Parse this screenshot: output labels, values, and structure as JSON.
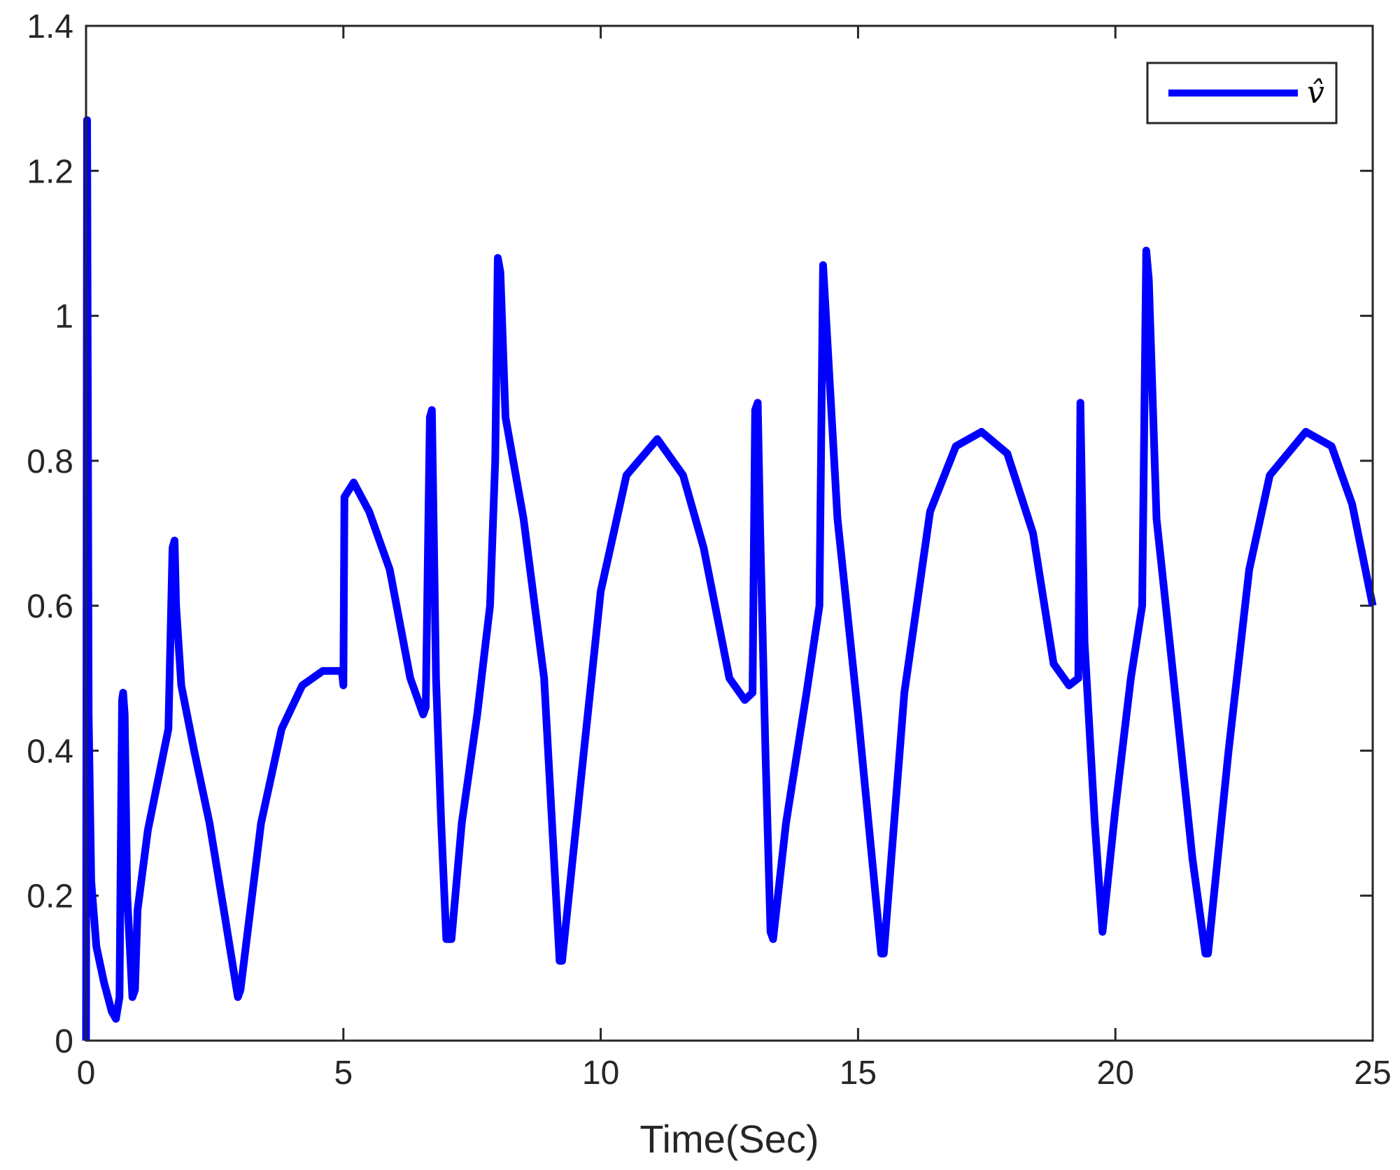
{
  "chart_data": {
    "type": "line",
    "title": "",
    "xlabel": "Time(Sec)",
    "ylabel": "",
    "xlim": [
      0,
      25
    ],
    "ylim": [
      0,
      1.4
    ],
    "xticks": [
      "0",
      "5",
      "10",
      "15",
      "20",
      "25"
    ],
    "yticks": [
      "0",
      "0.2",
      "0.4",
      "0.6",
      "0.8",
      "1",
      "1.2",
      "1.4"
    ],
    "grid": false,
    "legend": {
      "position": "top-right",
      "entries": [
        "v̂"
      ]
    },
    "colors": {
      "series": "#0000ff",
      "axes": "#262626"
    },
    "series": [
      {
        "name": "v̂",
        "x": [
          0,
          0.02,
          0.05,
          0.1,
          0.2,
          0.35,
          0.5,
          0.58,
          0.65,
          0.7,
          0.72,
          0.75,
          0.8,
          0.9,
          0.95,
          1.0,
          1.2,
          1.4,
          1.6,
          1.68,
          1.72,
          1.75,
          1.85,
          2.1,
          2.4,
          2.7,
          2.95,
          3.0,
          3.4,
          3.8,
          4.2,
          4.6,
          4.97,
          5.0,
          5.02,
          5.2,
          5.5,
          5.9,
          6.3,
          6.55,
          6.6,
          6.68,
          6.72,
          6.8,
          6.9,
          7.0,
          7.1,
          7.3,
          7.6,
          7.85,
          7.95,
          8.0,
          8.05,
          8.15,
          8.5,
          8.9,
          9.2,
          9.25,
          9.6,
          10.0,
          10.5,
          11.1,
          11.6,
          12.0,
          12.5,
          12.8,
          12.95,
          13.0,
          13.05,
          13.1,
          13.2,
          13.3,
          13.35,
          13.6,
          14.0,
          14.25,
          14.32,
          14.4,
          14.6,
          15.0,
          15.45,
          15.5,
          15.9,
          16.4,
          16.9,
          17.4,
          17.9,
          18.4,
          18.8,
          19.1,
          19.28,
          19.32,
          19.4,
          19.6,
          19.75,
          20.0,
          20.3,
          20.52,
          20.6,
          20.65,
          20.8,
          21.1,
          21.5,
          21.75,
          21.8,
          22.2,
          22.6,
          23.0,
          23.7,
          24.2,
          24.6,
          25.0
        ],
        "values": [
          0,
          1.27,
          0.45,
          0.22,
          0.13,
          0.08,
          0.04,
          0.03,
          0.06,
          0.47,
          0.48,
          0.45,
          0.2,
          0.06,
          0.07,
          0.18,
          0.29,
          0.36,
          0.43,
          0.68,
          0.69,
          0.6,
          0.49,
          0.4,
          0.3,
          0.17,
          0.06,
          0.07,
          0.3,
          0.43,
          0.49,
          0.51,
          0.51,
          0.49,
          0.75,
          0.77,
          0.73,
          0.65,
          0.5,
          0.45,
          0.46,
          0.86,
          0.87,
          0.5,
          0.3,
          0.14,
          0.14,
          0.3,
          0.45,
          0.6,
          0.8,
          1.08,
          1.06,
          0.86,
          0.72,
          0.5,
          0.11,
          0.11,
          0.35,
          0.62,
          0.78,
          0.83,
          0.78,
          0.68,
          0.5,
          0.47,
          0.48,
          0.87,
          0.88,
          0.7,
          0.4,
          0.15,
          0.14,
          0.3,
          0.48,
          0.6,
          1.07,
          0.97,
          0.72,
          0.45,
          0.12,
          0.12,
          0.48,
          0.73,
          0.82,
          0.84,
          0.81,
          0.7,
          0.52,
          0.49,
          0.5,
          0.88,
          0.55,
          0.3,
          0.15,
          0.32,
          0.5,
          0.6,
          1.09,
          1.05,
          0.72,
          0.52,
          0.25,
          0.12,
          0.12,
          0.4,
          0.65,
          0.78,
          0.84,
          0.82,
          0.74,
          0.6
        ]
      }
    ]
  }
}
